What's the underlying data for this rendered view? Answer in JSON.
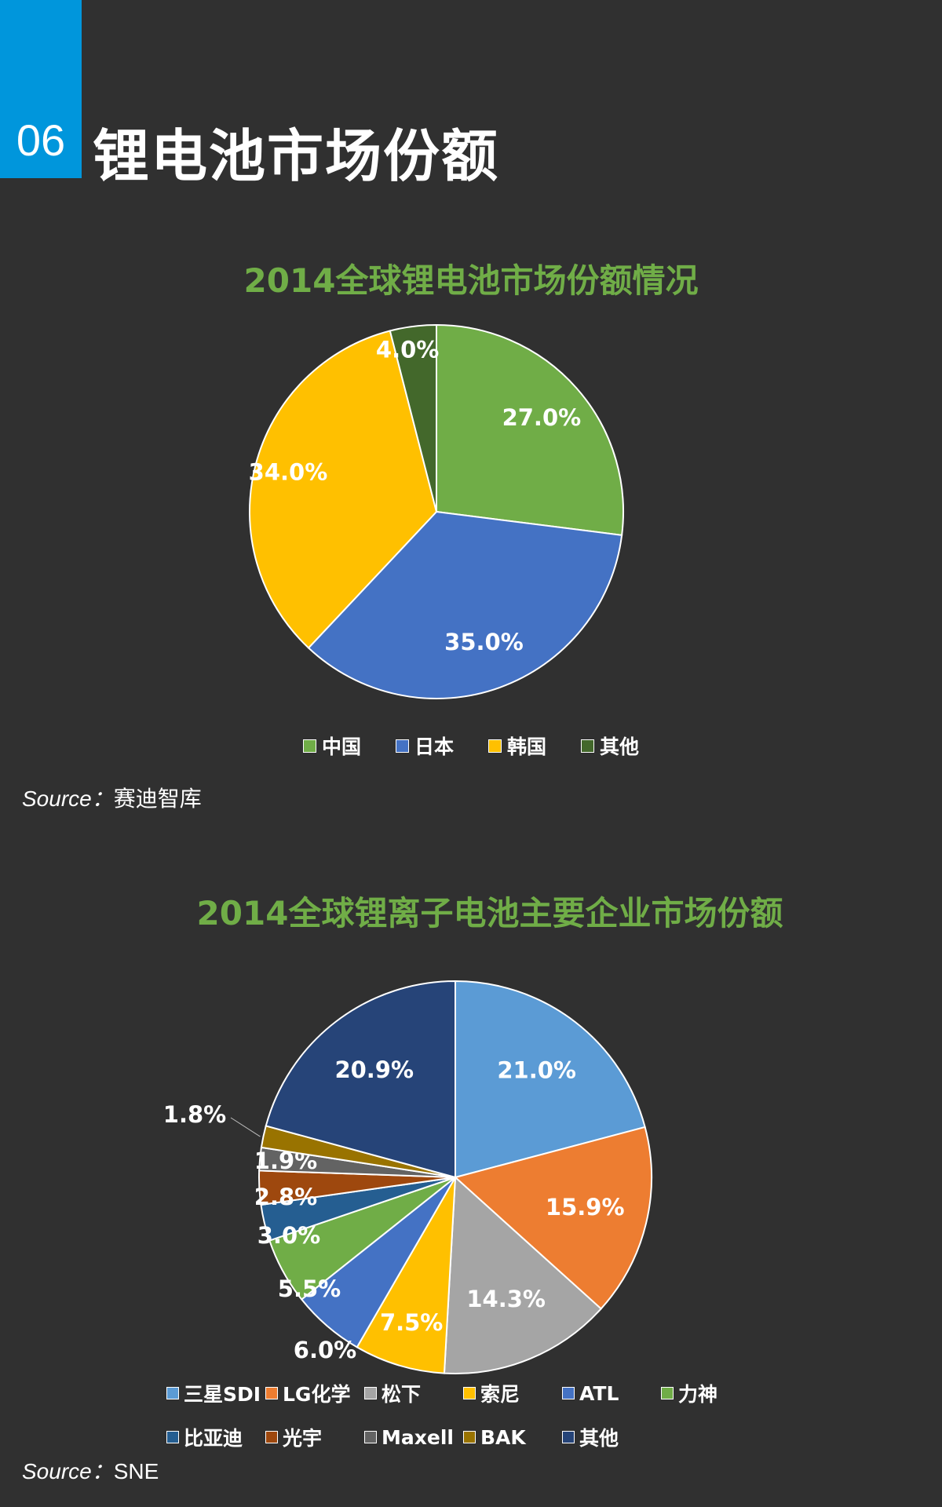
{
  "header": {
    "section_number": "06",
    "title": "锂电池市场份额"
  },
  "source1": {
    "label": "Source：",
    "value": "赛迪智库"
  },
  "source2": {
    "label": "Source：",
    "value": "SNE"
  },
  "chart_data": [
    {
      "type": "pie",
      "title": "2014全球锂电池市场份额情况",
      "categories": [
        "中国",
        "日本",
        "韩国",
        "其他"
      ],
      "values": [
        27.0,
        35.0,
        34.0,
        4.0
      ],
      "labels": [
        "27.0%",
        "35.0%",
        "34.0%",
        "4.0%"
      ],
      "colors": [
        "#70ad47",
        "#4472c4",
        "#ffc000",
        "#43682b"
      ],
      "legend": "bottom"
    },
    {
      "type": "pie",
      "title": "2014全球锂离子电池主要企业市场份额",
      "categories": [
        "三星SDI",
        "LG化学",
        "松下",
        "索尼",
        "ATL",
        "力神",
        "比亚迪",
        "光宇",
        "Maxell",
        "BAK",
        "其他"
      ],
      "values": [
        21.0,
        15.9,
        14.3,
        7.5,
        6.0,
        5.5,
        3.0,
        2.8,
        1.9,
        1.8,
        20.9
      ],
      "labels": [
        "21.0%",
        "15.9%",
        "14.3%",
        "7.5%",
        "6.0%",
        "5.5%",
        "3.0%",
        "2.8%",
        "1.9%",
        "1.8%",
        "20.9%"
      ],
      "colors": [
        "#5b9bd5",
        "#ed7d31",
        "#a5a5a5",
        "#ffc000",
        "#4472c4",
        "#70ad47",
        "#255e91",
        "#9e480e",
        "#636363",
        "#997300",
        "#264478"
      ],
      "legend": "bottom"
    }
  ]
}
